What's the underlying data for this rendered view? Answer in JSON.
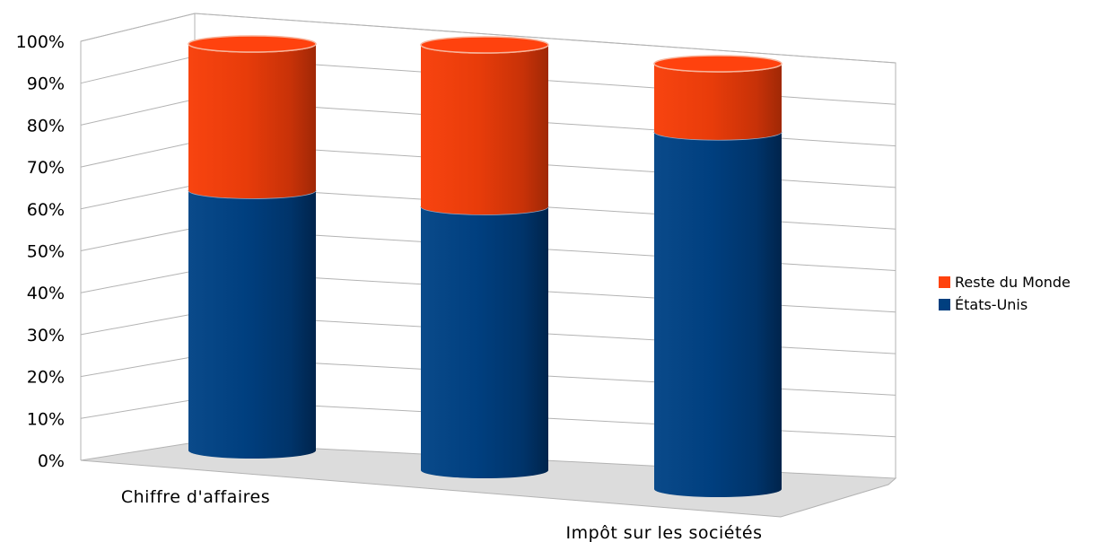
{
  "chart_data": {
    "type": "bar",
    "stacked": true,
    "three_d": true,
    "bar_shape": "cylinder",
    "normalized_percent": true,
    "categories": [
      "Chiffre d'affaires",
      "",
      "Impôt sur les sociétés"
    ],
    "series": [
      {
        "name": "États-Unis",
        "values": [
          64,
          62,
          84
        ],
        "color": "#003f7f"
      },
      {
        "name": "Reste du Monde",
        "values": [
          36,
          38,
          16
        ],
        "color": "#ff420e"
      }
    ],
    "y_ticks": [
      "0%",
      "10%",
      "20%",
      "30%",
      "40%",
      "50%",
      "60%",
      "70%",
      "80%",
      "90%",
      "100%"
    ],
    "ylim": [
      0,
      100
    ],
    "grid": true,
    "legend_position": "right",
    "legend_entries": [
      "Reste du Monde",
      "États-Unis"
    ]
  }
}
